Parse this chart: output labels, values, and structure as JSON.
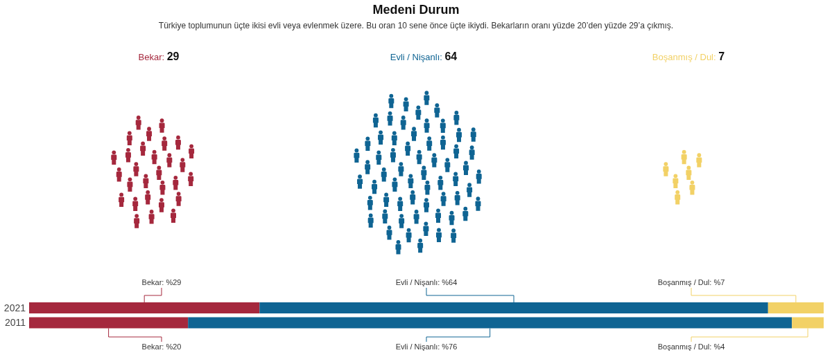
{
  "chart_data": [
    {
      "type": "other",
      "title": "Medeni Durum",
      "subtitle": "Türkiye toplumunun üçte ikisi evli veya evlenmek üzere. Bu oran 10 sene önce üçte ikiydi. Bekarların oranı yüzde 20’den yüzde 29’a çıkmış.",
      "values": [
        29,
        64,
        7
      ],
      "value_labels": [
        "Bekar: 29",
        "Evli / Nişanlı: 64",
        "Boşanmış / Dul: 7"
      ],
      "colors": [
        "#a5283d",
        "#0f6493",
        "#f2d166"
      ]
    },
    {
      "type": "bar",
      "orientation": "horizontal",
      "stacked": true,
      "categories": [
        "2021",
        "2011"
      ],
      "series": [
        {
          "color": "#a5283d",
          "values": [
            29,
            20
          ],
          "value_labels": [
            "Bekar: %29",
            "Bekar: %20"
          ]
        },
        {
          "color": "#0f6493",
          "values": [
            64,
            76
          ],
          "value_labels": [
            "Evli / Nişanlı: %64",
            "Evli / Nişanlı: %76"
          ]
        },
        {
          "color": "#f2d166",
          "values": [
            7,
            4
          ],
          "value_labels": [
            "Boşanmış / Dul: %7",
            "Boşanmış / Dul: %4"
          ]
        }
      ],
      "xlim": [
        0,
        100
      ],
      "tick_labels": "y"
    }
  ]
}
